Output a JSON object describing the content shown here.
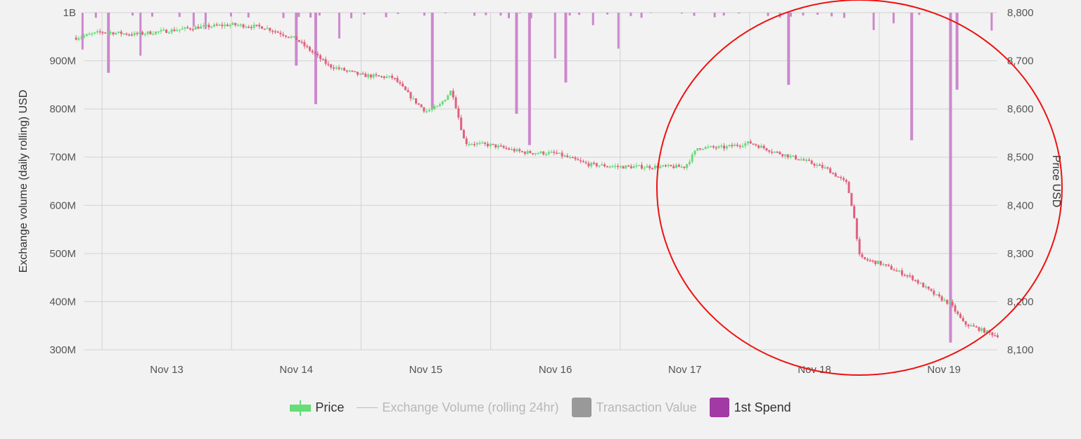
{
  "legend": {
    "items": [
      {
        "label": "Price",
        "color": "#66dd77",
        "state": "active"
      },
      {
        "label": "Exchange Volume (rolling 24hr)",
        "color": "#bbbbbb",
        "state": "inactive"
      },
      {
        "label": "Transaction Value",
        "color": "#999999",
        "state": "inactive"
      },
      {
        "label": "1st Spend",
        "color": "#a23aa5",
        "state": "active"
      }
    ]
  },
  "colors": {
    "up_candle": "#66dd77",
    "down_candle": "#e0607e",
    "spend_bar": "#cc88cc",
    "gridline": "#d2d2d2",
    "annotation_circle": "#ee1111",
    "background": "#f2f2f2"
  },
  "chart_data": {
    "type": "candlestick+bar",
    "title": "",
    "xlabel": "",
    "ylabel_left": "Exchange volume (daily rolling) USD",
    "ylabel_right": "Price USD",
    "x_ticks": [
      "Nov 13",
      "Nov 14",
      "Nov 15",
      "Nov 16",
      "Nov 17",
      "Nov 18",
      "Nov 19"
    ],
    "x_range": [
      "Nov 12 ~06:00",
      "Nov 19 ~19:00"
    ],
    "left_axis": {
      "ticks": [
        "300M",
        "400M",
        "500M",
        "600M",
        "700M",
        "800M",
        "900M",
        "1B"
      ],
      "range": [
        300000000,
        1000000000
      ]
    },
    "right_axis": {
      "ticks": [
        "8,100",
        "8,200",
        "8,300",
        "8,400",
        "8,500",
        "8,600",
        "8,700",
        "8,800"
      ],
      "range": [
        8100,
        8800
      ]
    },
    "grid": true,
    "legend_position": "bottom-center",
    "price_series_approx": [
      {
        "day": 12.25,
        "price": 8745
      },
      {
        "day": 12.5,
        "price": 8760
      },
      {
        "day": 12.75,
        "price": 8755
      },
      {
        "day": 13.0,
        "price": 8762
      },
      {
        "day": 13.25,
        "price": 8770
      },
      {
        "day": 13.5,
        "price": 8775
      },
      {
        "day": 13.75,
        "price": 8770
      },
      {
        "day": 14.0,
        "price": 8745
      },
      {
        "day": 14.25,
        "price": 8690
      },
      {
        "day": 14.5,
        "price": 8670
      },
      {
        "day": 14.75,
        "price": 8665
      },
      {
        "day": 14.9,
        "price": 8620
      },
      {
        "day": 15.0,
        "price": 8595
      },
      {
        "day": 15.1,
        "price": 8605
      },
      {
        "day": 15.2,
        "price": 8640
      },
      {
        "day": 15.3,
        "price": 8530
      },
      {
        "day": 15.5,
        "price": 8525
      },
      {
        "day": 15.75,
        "price": 8510
      },
      {
        "day": 16.0,
        "price": 8508
      },
      {
        "day": 16.25,
        "price": 8485
      },
      {
        "day": 16.5,
        "price": 8480
      },
      {
        "day": 16.75,
        "price": 8480
      },
      {
        "day": 17.0,
        "price": 8480
      },
      {
        "day": 17.1,
        "price": 8520
      },
      {
        "day": 17.3,
        "price": 8520
      },
      {
        "day": 17.5,
        "price": 8530
      },
      {
        "day": 17.7,
        "price": 8510
      },
      {
        "day": 17.9,
        "price": 8495
      },
      {
        "day": 18.1,
        "price": 8475
      },
      {
        "day": 18.25,
        "price": 8445
      },
      {
        "day": 18.3,
        "price": 8385
      },
      {
        "day": 18.35,
        "price": 8290
      },
      {
        "day": 18.5,
        "price": 8280
      },
      {
        "day": 18.75,
        "price": 8250
      },
      {
        "day": 18.95,
        "price": 8210
      },
      {
        "day": 19.05,
        "price": 8195
      },
      {
        "day": 19.15,
        "price": 8155
      },
      {
        "day": 19.3,
        "price": 8140
      },
      {
        "day": 19.4,
        "price": 8130
      }
    ],
    "first_spend_spikes_approx": [
      {
        "day": 12.55,
        "volume": 875000000
      },
      {
        "day": 14.15,
        "volume": 810000000
      },
      {
        "day": 14.0,
        "volume": 890000000
      },
      {
        "day": 15.05,
        "volume": 800000000
      },
      {
        "day": 15.7,
        "volume": 790000000
      },
      {
        "day": 15.8,
        "volume": 725000000
      },
      {
        "day": 16.08,
        "volume": 855000000
      },
      {
        "day": 17.8,
        "volume": 850000000
      },
      {
        "day": 18.75,
        "volume": 735000000
      },
      {
        "day": 19.05,
        "volume": 315000000
      },
      {
        "day": 19.1,
        "volume": 840000000
      }
    ],
    "annotation": "red circle drawn around Nov 17 – Nov 19 region"
  }
}
